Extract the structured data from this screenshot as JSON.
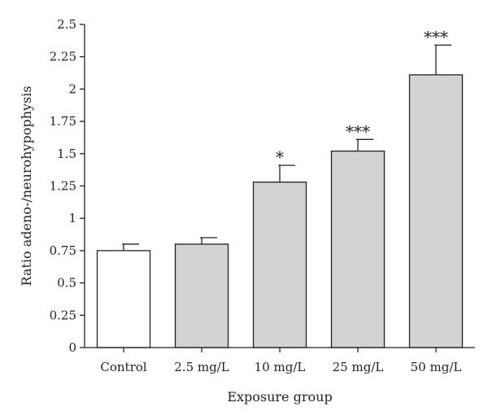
{
  "chart_data": {
    "type": "bar",
    "title": "",
    "xlabel": "Exposure group",
    "ylabel": "Ratio adeno-/neurohypophysis",
    "ylim": [
      0,
      2.5
    ],
    "yticks": [
      0,
      0.25,
      0.5,
      0.75,
      1,
      1.25,
      1.5,
      1.75,
      2,
      2.25,
      2.5
    ],
    "ytick_labels": [
      "0",
      "0.25",
      "0.5",
      "0.75",
      "1",
      "1.25",
      "1.5",
      "1.75",
      "2",
      "2.25",
      "2.5"
    ],
    "categories": [
      "Control",
      "2.5 mg/L",
      "10 mg/L",
      "25 mg/L",
      "50 mg/L"
    ],
    "values": [
      0.75,
      0.8,
      1.28,
      1.52,
      2.11
    ],
    "error_upper": [
      0.05,
      0.05,
      0.13,
      0.09,
      0.23
    ],
    "significance": [
      "",
      "",
      "*",
      "***",
      "***"
    ],
    "bar_colors": [
      "#ffffff",
      "#d3d3d3",
      "#d3d3d3",
      "#d3d3d3",
      "#d3d3d3"
    ],
    "grid": false,
    "legend": "none"
  }
}
